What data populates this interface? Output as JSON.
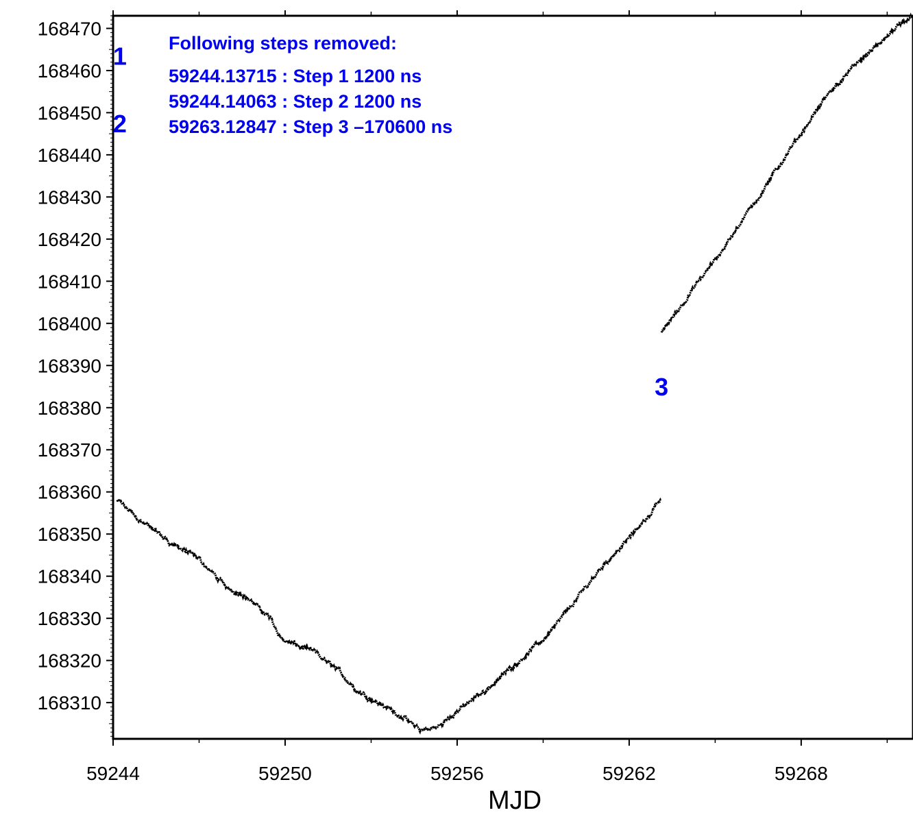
{
  "chart_data": {
    "type": "scatter",
    "title": "",
    "xlabel": "MJD",
    "ylabel": "",
    "xlim": [
      59244,
      59271.9
    ],
    "ylim": [
      168301.4,
      168473
    ],
    "x_ticks": [
      59244,
      59250,
      59256,
      59262,
      59268
    ],
    "x_tick_labels": [
      "59244",
      "59250",
      "59256",
      "59262",
      "59268"
    ],
    "y_ticks": [
      168310,
      168320,
      168330,
      168340,
      168350,
      168360,
      168370,
      168380,
      168390,
      168400,
      168410,
      168420,
      168430,
      168440,
      168450,
      168460,
      168470
    ],
    "y_tick_labels": [
      "168310",
      "168320",
      "168330",
      "168340",
      "168350",
      "168360",
      "168370",
      "168380",
      "168390",
      "168400",
      "168410",
      "168420",
      "168430",
      "168440",
      "168450",
      "168460",
      "168470"
    ],
    "grid": false,
    "series": [
      {
        "color": "#000000",
        "segments": [
          {
            "x": [
              59244.14,
              59245.0,
              59246.0,
              59247.0,
              59248.0,
              59248.5,
              59249.0,
              59249.5,
              59249.9,
              59251.0,
              59251.8,
              59252.5,
              59253.0,
              59254.0,
              59254.7,
              59255.3,
              59256.0,
              59257.0,
              59258.0,
              59259.0,
              59260.0,
              59261.0,
              59262.0,
              59262.5,
              59263.1
            ],
            "y": [
              168358,
              168353,
              168348,
              168344,
              168337,
              168336,
              168333,
              168330,
              168325,
              168322,
              168318,
              168313,
              168311,
              168307,
              168303.5,
              168304,
              168308,
              168313,
              168319,
              168325,
              168333,
              168342,
              168349,
              168353,
              168358
            ]
          },
          {
            "x": [
              59263.13,
              59264.0,
              59265.0,
              59266.0,
              59267.0,
              59268.0,
              59269.0,
              59270.0,
              59271.0,
              59271.9
            ],
            "y": [
              168398,
              168406,
              168415,
              168425,
              168435,
              168445,
              168455,
              168462,
              168468,
              168473
            ]
          }
        ]
      }
    ],
    "annotations": {
      "header": "Following steps removed:",
      "lines": [
        "59244.13715 : Step 1 1200 ns",
        "59244.14063 : Step 2 1200 ns",
        "59263.12847 : Step 3 –170600 ns"
      ],
      "markers": [
        {
          "label": "1",
          "x": 59244.14,
          "y": 168463
        },
        {
          "label": "2",
          "x": 59244.14,
          "y": 168447
        },
        {
          "label": "3",
          "x": 59263.13,
          "y": 168378
        }
      ],
      "color": "#0000ee"
    }
  }
}
